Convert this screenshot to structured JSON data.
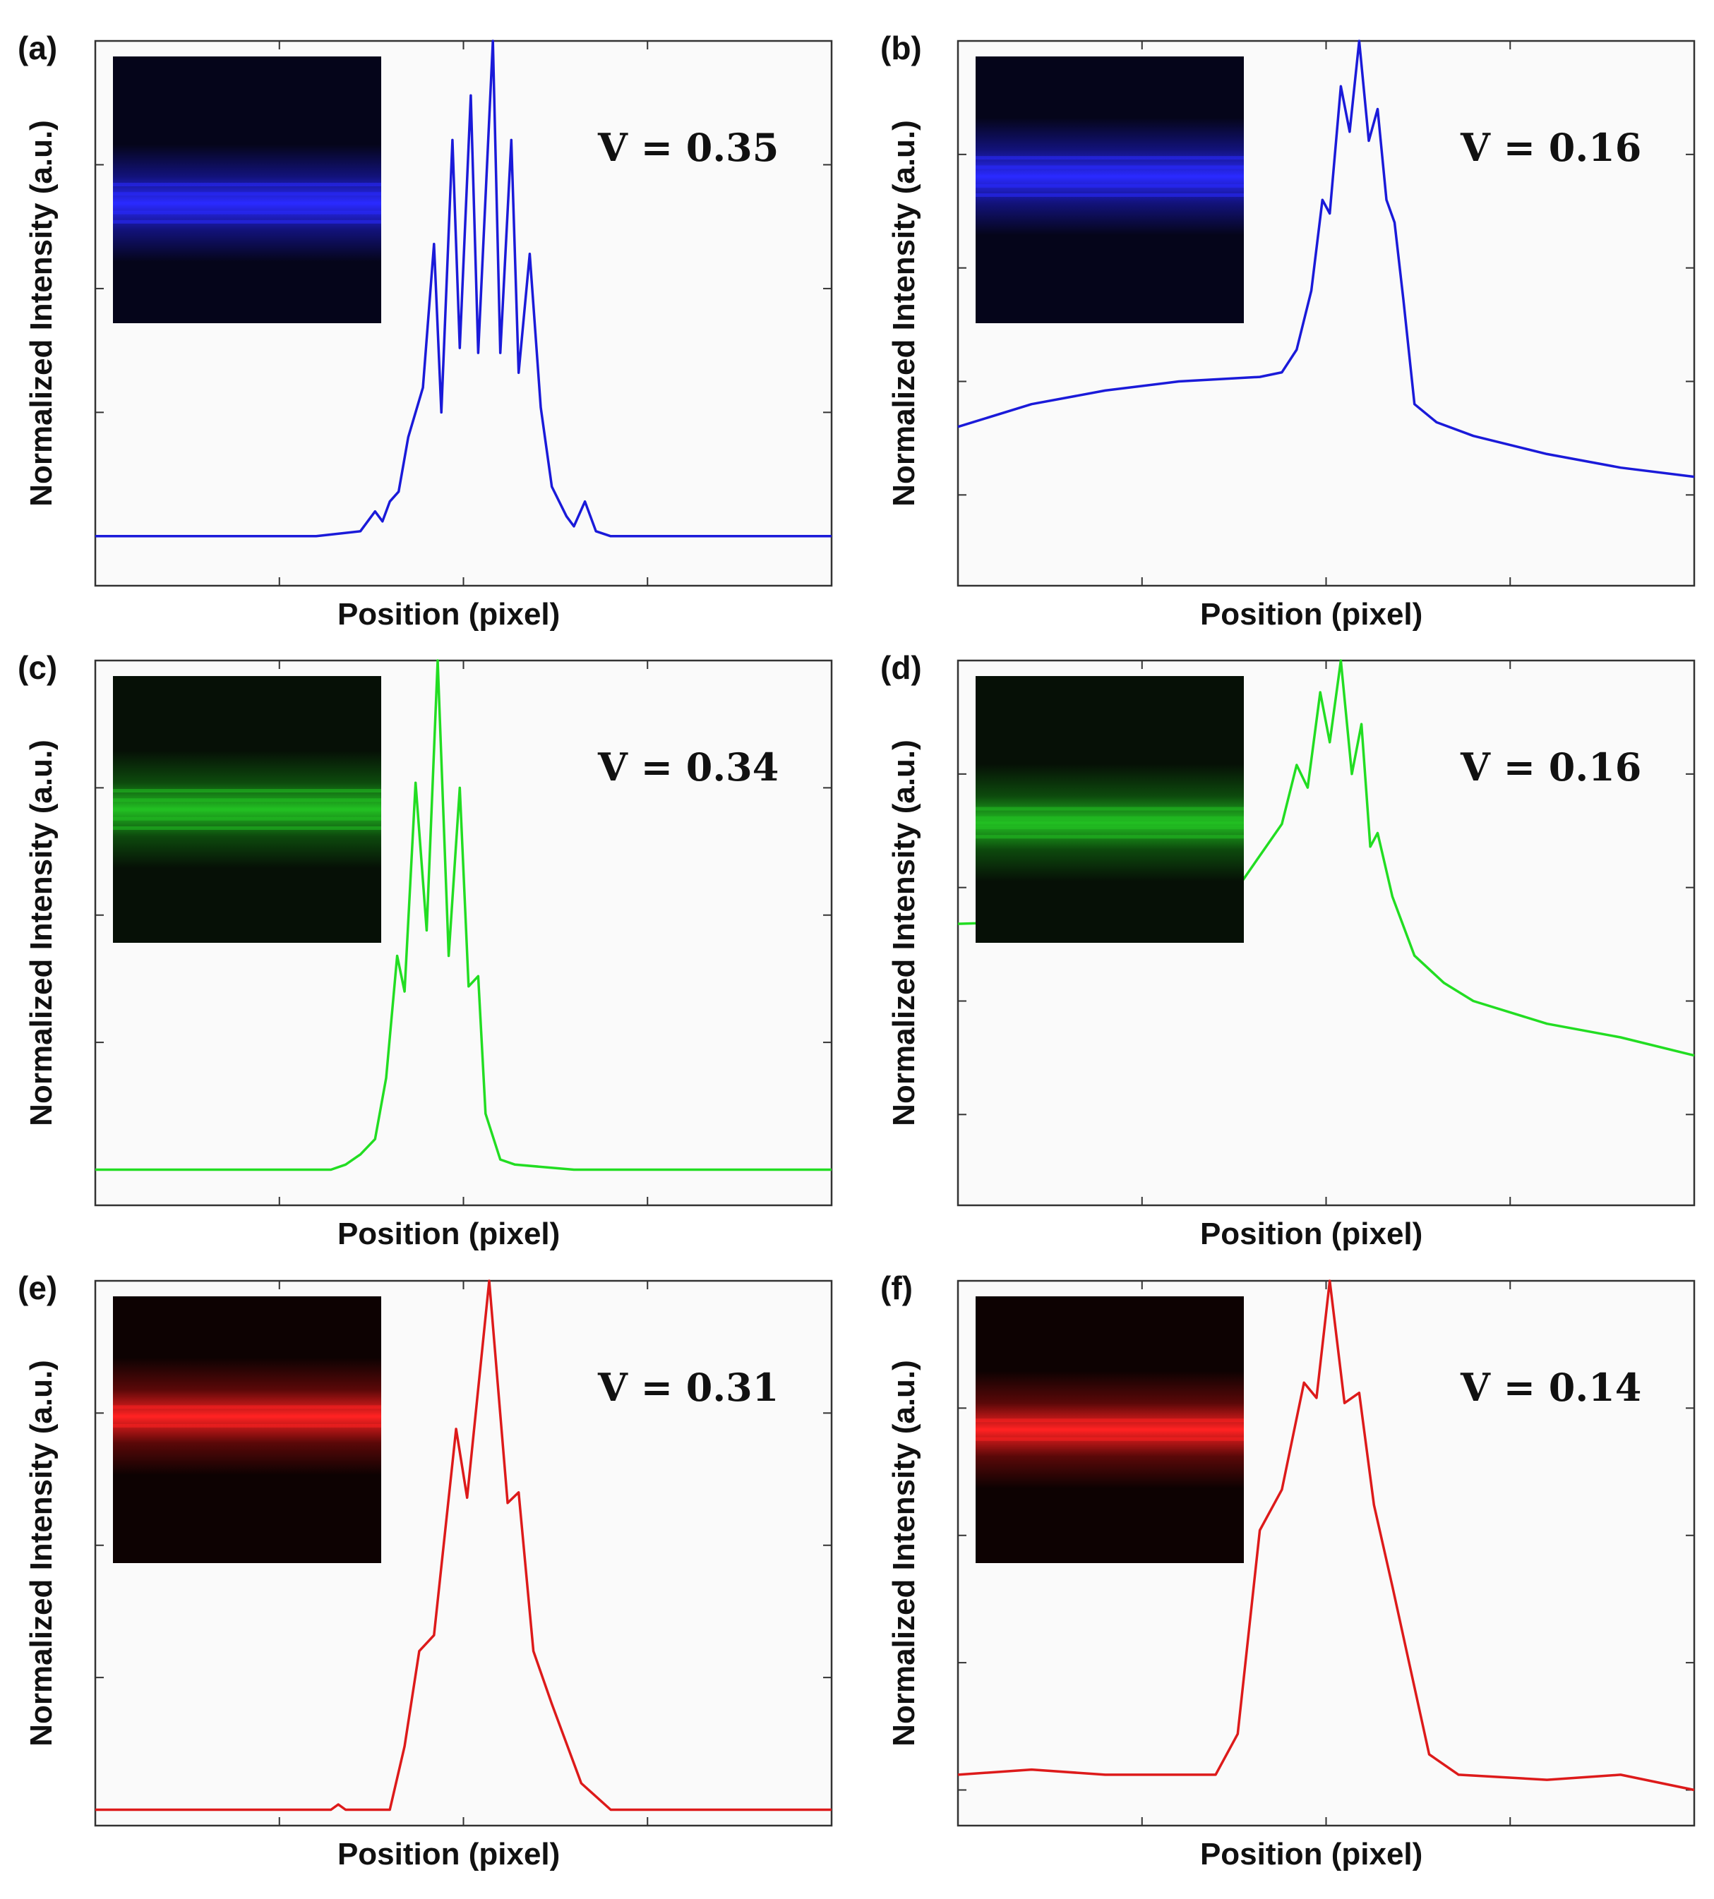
{
  "chart_data": [
    {
      "panel": "(a)",
      "type": "line",
      "color": "#1a1ad9",
      "visibility_label": "V = 0.35",
      "xlabel": "Position (pixel)",
      "ylabel": "Normalized Intensity (a.u.)",
      "xlim": [
        0,
        1000
      ],
      "ylim": [
        -0.1,
        1.0
      ],
      "inset": {
        "type": "fringe-image",
        "color": "blue",
        "fringes": 5,
        "band_center": 0.55
      },
      "points": [
        [
          0,
          0.0
        ],
        [
          300,
          0.0
        ],
        [
          360,
          0.01
        ],
        [
          380,
          0.05
        ],
        [
          390,
          0.03
        ],
        [
          400,
          0.07
        ],
        [
          412,
          0.09
        ],
        [
          425,
          0.2
        ],
        [
          445,
          0.3
        ],
        [
          460,
          0.59
        ],
        [
          470,
          0.25
        ],
        [
          485,
          0.8
        ],
        [
          495,
          0.38
        ],
        [
          510,
          0.89
        ],
        [
          520,
          0.37
        ],
        [
          540,
          1.0
        ],
        [
          550,
          0.37
        ],
        [
          565,
          0.8
        ],
        [
          575,
          0.33
        ],
        [
          590,
          0.57
        ],
        [
          605,
          0.26
        ],
        [
          620,
          0.1
        ],
        [
          640,
          0.04
        ],
        [
          650,
          0.02
        ],
        [
          665,
          0.07
        ],
        [
          680,
          0.01
        ],
        [
          700,
          0.0
        ],
        [
          1000,
          0.0
        ]
      ]
    },
    {
      "panel": "(b)",
      "type": "line",
      "color": "#1a1ad9",
      "visibility_label": "V = 0.16",
      "xlabel": "Position (pixel)",
      "ylabel": "Normalized Intensity (a.u.)",
      "xlim": [
        0,
        1000
      ],
      "ylim": [
        -0.2,
        1.0
      ],
      "inset": {
        "type": "fringe-image",
        "color": "blue",
        "fringes": 5,
        "band_center": 0.45
      },
      "points": [
        [
          0,
          0.15
        ],
        [
          100,
          0.2
        ],
        [
          200,
          0.23
        ],
        [
          300,
          0.25
        ],
        [
          410,
          0.26
        ],
        [
          440,
          0.27
        ],
        [
          460,
          0.32
        ],
        [
          480,
          0.45
        ],
        [
          495,
          0.65
        ],
        [
          505,
          0.62
        ],
        [
          520,
          0.9
        ],
        [
          532,
          0.8
        ],
        [
          545,
          1.0
        ],
        [
          558,
          0.78
        ],
        [
          570,
          0.85
        ],
        [
          582,
          0.65
        ],
        [
          593,
          0.6
        ],
        [
          605,
          0.43
        ],
        [
          620,
          0.2
        ],
        [
          650,
          0.16
        ],
        [
          700,
          0.13
        ],
        [
          800,
          0.09
        ],
        [
          900,
          0.06
        ],
        [
          1000,
          0.04
        ]
      ]
    },
    {
      "panel": "(c)",
      "type": "line",
      "color": "#22dd22",
      "visibility_label": "V = 0.34",
      "xlabel": "Position (pixel)",
      "ylabel": "Normalized Intensity (a.u.)",
      "xlim": [
        0,
        1000
      ],
      "ylim": [
        -0.07,
        1.0
      ],
      "inset": {
        "type": "fringe-image",
        "color": "green",
        "fringes": 5,
        "band_center": 0.5
      },
      "points": [
        [
          0,
          0.0
        ],
        [
          320,
          0.0
        ],
        [
          340,
          0.01
        ],
        [
          360,
          0.03
        ],
        [
          380,
          0.06
        ],
        [
          395,
          0.18
        ],
        [
          410,
          0.42
        ],
        [
          420,
          0.35
        ],
        [
          435,
          0.76
        ],
        [
          450,
          0.47
        ],
        [
          465,
          1.0
        ],
        [
          480,
          0.42
        ],
        [
          495,
          0.75
        ],
        [
          507,
          0.36
        ],
        [
          520,
          0.38
        ],
        [
          530,
          0.11
        ],
        [
          550,
          0.02
        ],
        [
          570,
          0.01
        ],
        [
          650,
          0.0
        ],
        [
          1000,
          0.0
        ]
      ]
    },
    {
      "panel": "(d)",
      "type": "line",
      "color": "#22dd22",
      "visibility_label": "V = 0.16",
      "xlabel": "Position (pixel)",
      "ylabel": "Normalized Intensity (a.u.)",
      "xlim": [
        0,
        1000
      ],
      "ylim": [
        -0.2,
        1.0
      ],
      "inset": {
        "type": "fringe-image",
        "color": "green",
        "fringes": 4,
        "band_center": 0.55
      },
      "points": [
        [
          0,
          0.42
        ],
        [
          200,
          0.43
        ],
        [
          360,
          0.44
        ],
        [
          380,
          0.5
        ],
        [
          410,
          0.57
        ],
        [
          440,
          0.64
        ],
        [
          460,
          0.77
        ],
        [
          475,
          0.72
        ],
        [
          492,
          0.93
        ],
        [
          505,
          0.82
        ],
        [
          520,
          1.0
        ],
        [
          535,
          0.75
        ],
        [
          548,
          0.86
        ],
        [
          560,
          0.59
        ],
        [
          570,
          0.62
        ],
        [
          590,
          0.48
        ],
        [
          620,
          0.35
        ],
        [
          660,
          0.29
        ],
        [
          700,
          0.25
        ],
        [
          800,
          0.2
        ],
        [
          900,
          0.17
        ],
        [
          1000,
          0.13
        ]
      ]
    },
    {
      "panel": "(e)",
      "type": "line",
      "color": "#dd1a1a",
      "visibility_label": "V = 0.31",
      "xlabel": "Position (pixel)",
      "ylabel": "Normalized Intensity (a.u.)",
      "xlim": [
        0,
        1000
      ],
      "ylim": [
        -0.03,
        1.0
      ],
      "inset": {
        "type": "fringe-image",
        "color": "red",
        "fringes": 3,
        "band_center": 0.45
      },
      "points": [
        [
          0,
          0.0
        ],
        [
          200,
          0.0
        ],
        [
          320,
          0.0
        ],
        [
          330,
          0.01
        ],
        [
          340,
          0.0
        ],
        [
          400,
          0.0
        ],
        [
          420,
          0.12
        ],
        [
          440,
          0.3
        ],
        [
          460,
          0.33
        ],
        [
          490,
          0.72
        ],
        [
          505,
          0.59
        ],
        [
          535,
          1.0
        ],
        [
          560,
          0.58
        ],
        [
          575,
          0.6
        ],
        [
          595,
          0.3
        ],
        [
          620,
          0.2
        ],
        [
          660,
          0.05
        ],
        [
          700,
          0.0
        ],
        [
          1000,
          0.0
        ]
      ]
    },
    {
      "panel": "(f)",
      "type": "line",
      "color": "#dd1a1a",
      "visibility_label": "V = 0.14",
      "xlabel": "Position (pixel)",
      "ylabel": "Normalized Intensity (a.u.)",
      "xlim": [
        0,
        1000
      ],
      "ylim": [
        -0.07,
        1.0
      ],
      "inset": {
        "type": "fringe-image",
        "color": "red",
        "fringes": 3,
        "band_center": 0.5
      },
      "points": [
        [
          0,
          0.03
        ],
        [
          100,
          0.04
        ],
        [
          200,
          0.03
        ],
        [
          350,
          0.03
        ],
        [
          380,
          0.11
        ],
        [
          410,
          0.51
        ],
        [
          440,
          0.59
        ],
        [
          470,
          0.8
        ],
        [
          487,
          0.77
        ],
        [
          505,
          1.0
        ],
        [
          525,
          0.76
        ],
        [
          545,
          0.78
        ],
        [
          565,
          0.56
        ],
        [
          590,
          0.4
        ],
        [
          640,
          0.07
        ],
        [
          680,
          0.03
        ],
        [
          800,
          0.02
        ],
        [
          900,
          0.03
        ],
        [
          1000,
          0.0
        ]
      ]
    }
  ]
}
